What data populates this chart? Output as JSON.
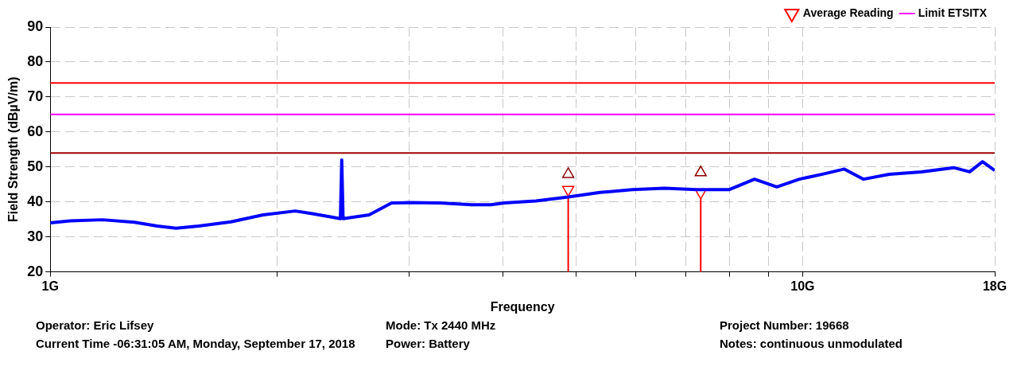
{
  "chart_data": {
    "type": "line",
    "xlabel": "Frequency",
    "ylabel": "Field Strength (dBµV/m)",
    "log": "x",
    "grid": true,
    "legend": "top right",
    "xlim": [
      1,
      18
    ],
    "xticks": [
      {
        "value": 1,
        "label": "1G"
      },
      {
        "value": 2,
        "label": null
      },
      {
        "value": 3,
        "label": null
      },
      {
        "value": 4,
        "label": null
      },
      {
        "value": 5,
        "label": null
      },
      {
        "value": 6,
        "label": null
      },
      {
        "value": 7,
        "label": null
      },
      {
        "value": 8,
        "label": null
      },
      {
        "value": 9,
        "label": null
      },
      {
        "value": 10,
        "label": "10G"
      },
      {
        "value": 18,
        "label": "18G"
      }
    ],
    "ylim": [
      20,
      90
    ],
    "yticks": [
      20,
      30,
      40,
      50,
      60,
      70,
      80,
      90
    ],
    "series": [
      {
        "type": "line",
        "color": "#0000ff",
        "marker": "none",
        "x": [
          1.0,
          1.063,
          1.173,
          1.294,
          1.387,
          1.47,
          1.575,
          1.738,
          1.918,
          2.116,
          2.223,
          2.334,
          2.43,
          2.44,
          2.45,
          2.653,
          2.842,
          2.985,
          3.294,
          3.634,
          3.854,
          4.01,
          4.42,
          4.88,
          5.38,
          5.94,
          6.55,
          7.23,
          7.98,
          8.63,
          9.24,
          9.9,
          10.71,
          11.36,
          12.05,
          13.03,
          14.38,
          15.87,
          16.67,
          17.34,
          18
        ],
        "values": [
          34.0,
          34.6,
          34.9,
          34.2,
          33.1,
          32.5,
          33.1,
          34.3,
          36.3,
          37.4,
          36.7,
          35.9,
          35.2,
          52,
          35.2,
          36.3,
          39.7,
          39.8,
          39.7,
          39.2,
          39.2,
          39.7,
          40.3,
          41.4,
          42.7,
          43.5,
          43.9,
          43.5,
          43.5,
          46.5,
          44.3,
          46.5,
          48.1,
          49.4,
          46.5,
          47.9,
          48.6,
          49.8,
          48.6,
          51.5,
          49
        ]
      },
      {
        "type": "scatter",
        "color": "#8b0000",
        "marker": "triangle",
        "x": [
          4.88,
          7.32
        ],
        "values": [
          47.9,
          48.4
        ]
      },
      {
        "type": "lollipop",
        "name": "Average Reading",
        "color": "#ff0000",
        "marker": "triangle",
        "x": [
          4.88,
          7.32
        ],
        "values": [
          43.5,
          42.7
        ]
      },
      {
        "type": "line",
        "name": "Limit ETSITX",
        "color": "#ff00ff",
        "marker": "none",
        "x": [
          1,
          18
        ],
        "values": [
          65,
          65
        ]
      }
    ],
    "ref_lines": [
      {
        "axis": "y",
        "value": 74,
        "color": "#ff0000"
      },
      {
        "axis": "y",
        "value": 54,
        "color": "#a00000"
      }
    ],
    "annotations": [
      "Operator: Eric Lifsey",
      "Mode: Tx 2440 MHz",
      "Project Number: 19668",
      "Current Time -06:31:05 AM, Monday, September 17, 2018",
      "Power: Battery",
      "Notes: continuous unmodulated"
    ]
  }
}
